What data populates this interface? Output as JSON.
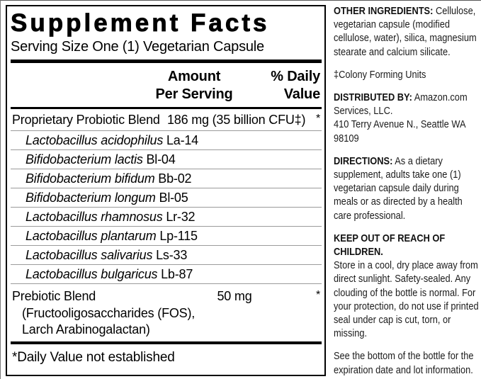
{
  "panel": {
    "title": "Supplement Facts",
    "serving_size": "Serving Size One (1) Vegetarian Capsule",
    "header": {
      "amount_line1": "Amount",
      "amount_line2": "Per Serving",
      "dv_line1": "% Daily",
      "dv_line2": "Value"
    },
    "main_row": {
      "name": "Proprietary Probiotic Blend",
      "amount": "186 mg (35 billion CFU‡)",
      "dv": "*"
    },
    "probiotics": [
      {
        "species": "Lactobacillus acidophilus",
        "code": "La-14"
      },
      {
        "species": "Bifidobacterium lactis",
        "code": "Bl-04"
      },
      {
        "species": "Bifidobacterium bifidum",
        "code": "Bb-02"
      },
      {
        "species": "Bifidobacterium longum",
        "code": "Bl-05"
      },
      {
        "species": "Lactobacillus rhamnosus",
        "code": "Lr-32"
      },
      {
        "species": "Lactobacillus plantarum",
        "code": "Lp-115"
      },
      {
        "species": "Lactobacillus salivarius",
        "code": "Ls-33"
      },
      {
        "species": "Lactobacillus bulgaricus",
        "code": "Lb-87"
      }
    ],
    "prebiotic": {
      "name": "Prebiotic Blend",
      "amount": "50 mg",
      "dv": "*",
      "detail_line1": "(Fructooligosaccharides (FOS),",
      "detail_line2": "Larch Arabinogalactan)"
    },
    "footnote": "*Daily Value not established"
  },
  "sidebar": {
    "other_ingredients_label": "OTHER INGREDIENTS:",
    "other_ingredients_text": "Cellulose, vegetarian capsule (modified cellulose, water), silica, magnesium stearate and calcium silicate.",
    "cfu_note": "‡Colony Forming Units",
    "distributed_label": "DISTRIBUTED BY:",
    "distributed_text": "Amazon.com Services, LLC.",
    "distributed_address": "410 Terry Avenue N., Seattle WA 98109",
    "directions_label": "DIRECTIONS:",
    "directions_text": "As a dietary supplement, adults take one (1) vegetarian capsule daily during meals or as directed by a health care professional.",
    "keep_out_heading": "KEEP OUT OF REACH OF CHILDREN.",
    "keep_out_text": "Store in a cool, dry place away from direct sunlight. Safety-sealed. Any clouding of the bottle is normal. For your protection, do not use if printed seal under cap is cut, torn, or missing.",
    "expiration_note": "See the bottom of the bottle for the expiration date and lot information."
  },
  "colors": {
    "background": "#ffffff",
    "text": "#111111",
    "rule_dark": "#000000",
    "rule_light": "#9b9b9b"
  }
}
